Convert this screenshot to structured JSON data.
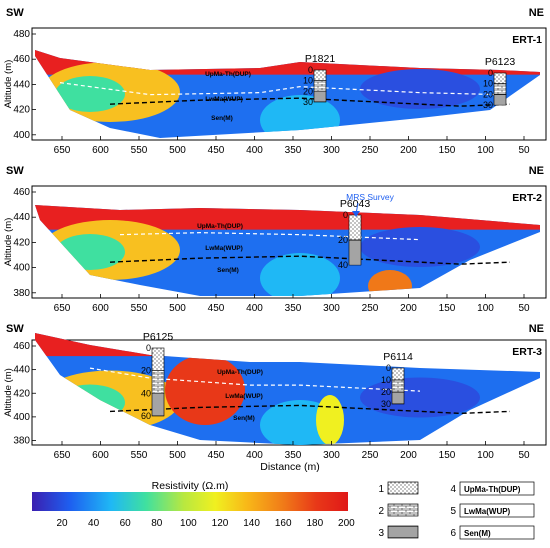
{
  "panels": [
    {
      "id": "ERT-1",
      "sw": "SW",
      "ne": "NE",
      "yticks": [
        "480",
        "460",
        "440",
        "420",
        "400"
      ],
      "xticks": [
        "650",
        "600",
        "550",
        "500",
        "450",
        "400",
        "350",
        "300",
        "250",
        "200",
        "150",
        "100",
        "50"
      ],
      "ylabel": "Altitude (m)",
      "boreholes": [
        {
          "name": "P1821",
          "depths": [
            "0",
            "10",
            "20",
            "30"
          ]
        },
        {
          "name": "P6123",
          "depths": [
            "0",
            "10",
            "20",
            "30"
          ]
        }
      ],
      "units": [
        "UpMa-Th(DUP)",
        "LwMa(WUP)",
        "Sen(M)"
      ]
    },
    {
      "id": "ERT-2",
      "sw": "SW",
      "ne": "NE",
      "yticks": [
        "460",
        "440",
        "420",
        "400",
        "380"
      ],
      "xticks": [
        "650",
        "600",
        "550",
        "500",
        "450",
        "400",
        "350",
        "300",
        "250",
        "200",
        "150",
        "100",
        "50"
      ],
      "ylabel": "Altitude (m)",
      "boreholes": [
        {
          "name": "P6043",
          "depths": [
            "0",
            "20",
            "40"
          ]
        }
      ],
      "survey": "MRS Survey",
      "units": [
        "UpMa-Th(DUP)",
        "LwMa(WUP)",
        "Sen(M)"
      ]
    },
    {
      "id": "ERT-3",
      "sw": "SW",
      "ne": "NE",
      "yticks": [
        "460",
        "440",
        "420",
        "400",
        "380"
      ],
      "xticks": [
        "650",
        "600",
        "550",
        "500",
        "450",
        "400",
        "350",
        "300",
        "250",
        "200",
        "150",
        "100",
        "50"
      ],
      "ylabel": "Altitude (m)",
      "xlabel": "Distance (m)",
      "boreholes": [
        {
          "name": "P6125",
          "depths": [
            "0",
            "20",
            "40",
            "60"
          ]
        },
        {
          "name": "P6114",
          "depths": [
            "0",
            "10",
            "20",
            "30"
          ]
        }
      ],
      "units": [
        "UpMa-Th(DUP)",
        "LwMa(WUP)",
        "Sen(M)"
      ]
    }
  ],
  "colorbar": {
    "title": "Resistivity (Ω.m)",
    "ticks": [
      "20",
      "40",
      "60",
      "80",
      "100",
      "120",
      "140",
      "160",
      "180",
      "200"
    ],
    "stops": [
      "#3b1fb0",
      "#1e5ff0",
      "#1fb8f5",
      "#3fe0a0",
      "#b8e840",
      "#f0f020",
      "#f8b818",
      "#f07818",
      "#e83818",
      "#e01818"
    ]
  },
  "legend": [
    {
      "num": "1",
      "label": ""
    },
    {
      "num": "2",
      "label": ""
    },
    {
      "num": "3",
      "label": ""
    },
    {
      "num": "4",
      "label": "UpMa-Th(DUP)"
    },
    {
      "num": "5",
      "label": "LwMa(WUP)"
    },
    {
      "num": "6",
      "label": "Sen(M)"
    }
  ]
}
